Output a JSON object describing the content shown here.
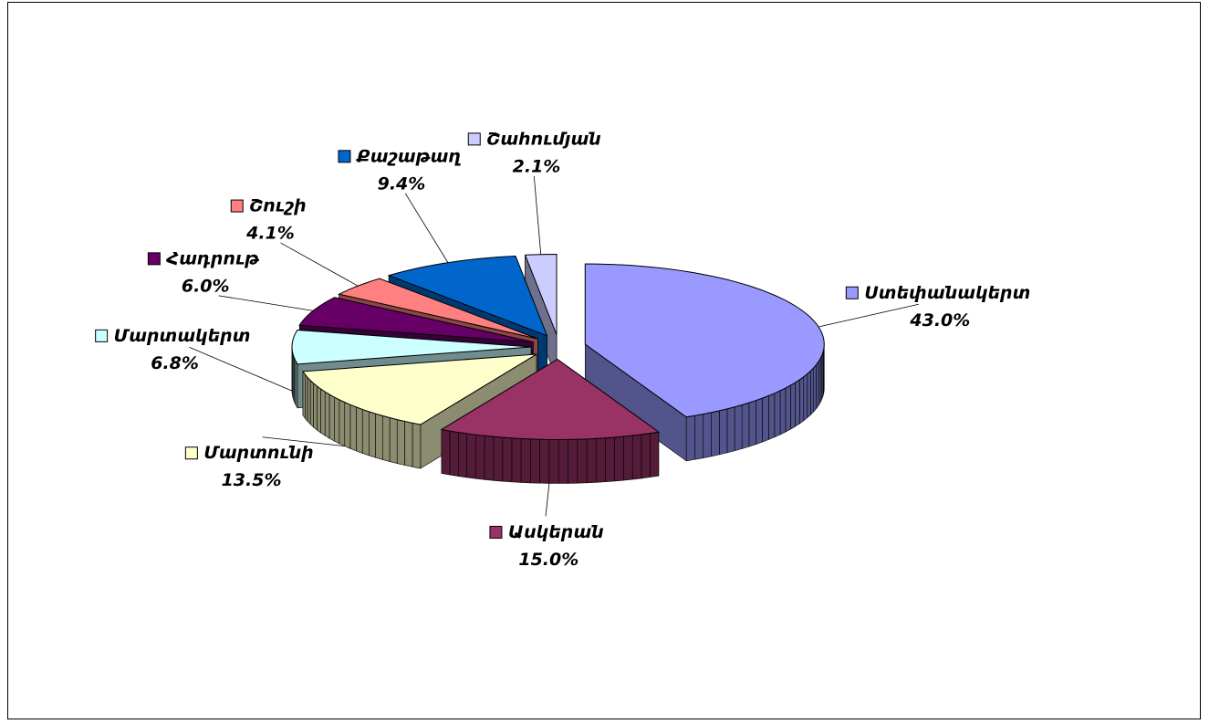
{
  "chart_data": {
    "type": "pie3d",
    "categories": [
      "Ստեփանակերտ",
      "Ասկերան",
      "Մարտունի",
      "Մարտակերտ",
      "Հադրութ",
      "Շուշի",
      "Քաշաթաղ",
      "Շահումյան"
    ],
    "values": [
      43.0,
      15.0,
      13.5,
      6.8,
      6.0,
      4.1,
      9.4,
      2.1
    ],
    "value_labels": [
      "43.0%",
      "15.0%",
      "13.5%",
      "6.8%",
      "6.0%",
      "4.1%",
      "9.4%",
      "2.1%"
    ],
    "colors": [
      "#9999ff",
      "#993366",
      "#ffffcc",
      "#ccffff",
      "#660066",
      "#ff8080",
      "#0066cc",
      "#ccccff"
    ]
  }
}
